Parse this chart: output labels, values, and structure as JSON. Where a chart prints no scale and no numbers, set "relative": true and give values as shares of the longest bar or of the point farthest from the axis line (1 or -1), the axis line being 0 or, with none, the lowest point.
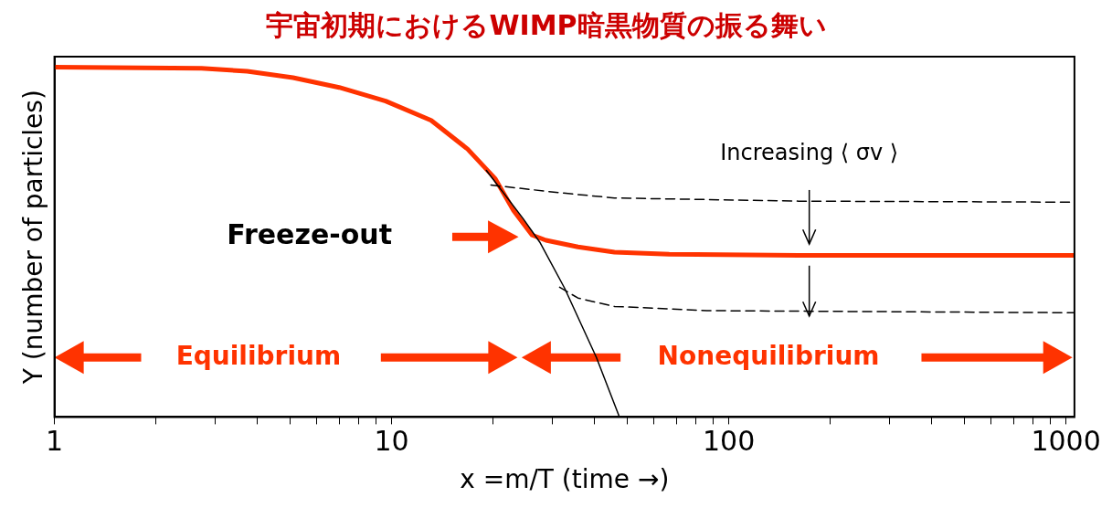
{
  "chart_data": {
    "type": "line",
    "title": "宇宙初期におけるWIMP暗黒物質の振る舞い",
    "xlabel": "x =m/T (time →)",
    "ylabel": "Y (number of particles)",
    "relative": true,
    "log": "x",
    "grid": false,
    "legend": false,
    "marker": "none",
    "xlim": [
      1,
      1060
    ],
    "xticks": [
      1,
      {
        "value": 2,
        "label": null
      },
      {
        "value": 3,
        "label": null
      },
      {
        "value": 4,
        "label": null
      },
      {
        "value": 5,
        "label": null
      },
      {
        "value": 6,
        "label": null
      },
      {
        "value": 7,
        "label": null
      },
      {
        "value": 8,
        "label": null
      },
      {
        "value": 9,
        "label": null
      },
      10,
      {
        "value": 20,
        "label": null
      },
      {
        "value": 30,
        "label": null
      },
      {
        "value": 40,
        "label": null
      },
      {
        "value": 50,
        "label": null
      },
      {
        "value": 60,
        "label": null
      },
      {
        "value": 70,
        "label": null
      },
      {
        "value": 80,
        "label": null
      },
      {
        "value": 90,
        "label": null
      },
      100,
      {
        "value": 200,
        "label": null
      },
      {
        "value": 300,
        "label": null
      },
      {
        "value": 400,
        "label": null
      },
      {
        "value": 500,
        "label": null
      },
      {
        "value": 600,
        "label": null
      },
      {
        "value": 700,
        "label": null
      },
      {
        "value": 800,
        "label": null
      },
      {
        "value": 900,
        "label": null
      },
      1000
    ],
    "annotations": [
      "Freeze-out",
      "Equilibrium",
      "Nonequilibrium",
      "Increasing ⟨ σv ⟩"
    ],
    "series": [
      {
        "color": "#000000",
        "line_style": "solid",
        "x": [
          19.1,
          24.5,
          27.5,
          32.6,
          40.5,
          47.4
        ],
        "values": [
          0.705,
          0.568,
          0.5,
          0.368,
          0.17,
          0
        ]
      },
      {
        "color": "#000000",
        "line_style": "dashed",
        "x": [
          19.7,
          31.5,
          45.8,
          161,
          1060
        ],
        "values": [
          0.663,
          0.641,
          0.626,
          0.617,
          0.614
        ]
      },
      {
        "color": "#000000",
        "line_style": "dashed",
        "x": [
          31.5,
          35.7,
          45.8,
          86,
          1060
        ],
        "values": [
          0.371,
          0.34,
          0.316,
          0.304,
          0.298
        ]
      },
      {
        "color": "#ff3300",
        "line_style": "solid",
        "x": [
          1,
          2.73,
          3.73,
          5.1,
          6.99,
          9.6,
          13.1,
          16.8,
          20.3,
          23.0,
          26.1,
          28.7,
          35.7,
          45.8,
          66.6,
          161,
          1060
        ],
        "values": [
          1,
          0.997,
          0.988,
          0.97,
          0.942,
          0.903,
          0.848,
          0.766,
          0.681,
          0.59,
          0.52,
          0.505,
          0.486,
          0.471,
          0.465,
          0.462,
          0.462
        ]
      }
    ]
  }
}
